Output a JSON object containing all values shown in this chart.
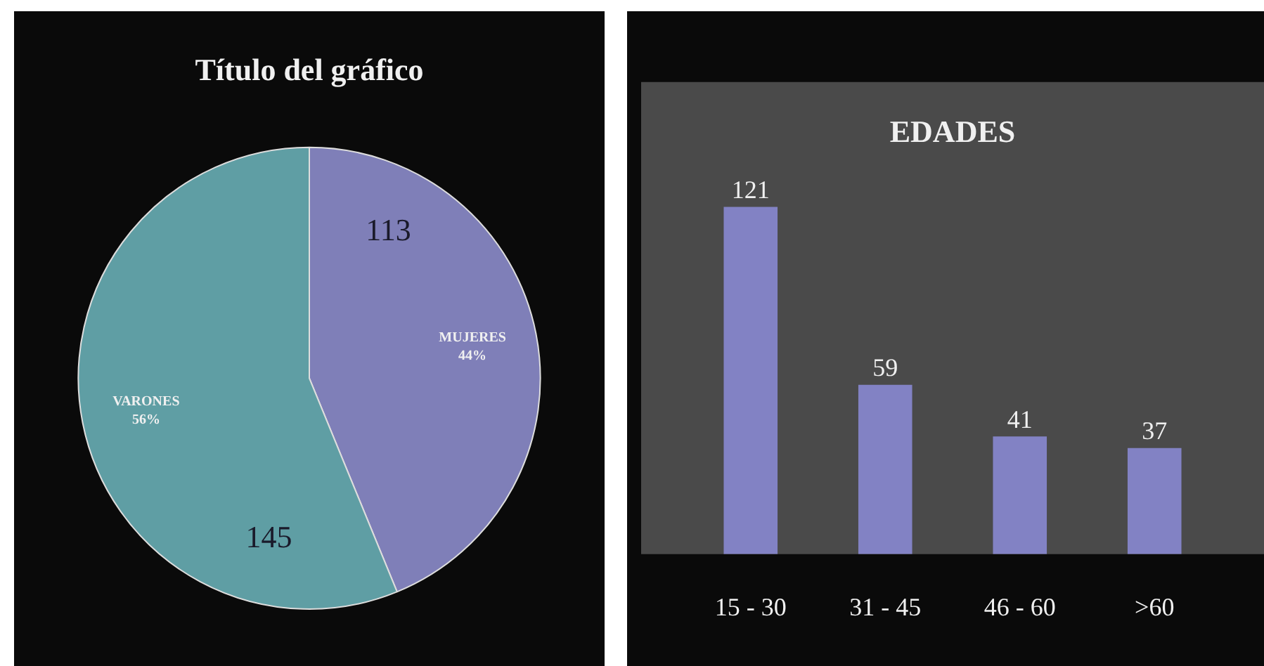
{
  "chart_data": [
    {
      "type": "pie",
      "title": "Título del gráfico",
      "categories": [
        "MUJERES",
        "VARONES"
      ],
      "values": [
        113,
        145
      ],
      "colors": [
        "#7f7fb8",
        "#5f9ea4"
      ],
      "data_labels": true,
      "annotations": [
        "44%",
        "56%"
      ]
    },
    {
      "type": "bar",
      "title": "EDADES",
      "categories": [
        "15 - 30",
        "31 - 45",
        "46 - 60",
        ">60"
      ],
      "values": [
        121,
        59,
        41,
        37
      ],
      "color": "#8282c4",
      "data_labels": true
    }
  ]
}
